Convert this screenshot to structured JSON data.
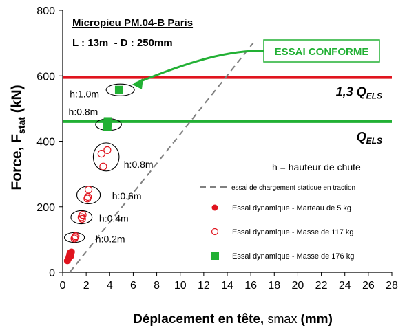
{
  "chart_data": {
    "type": "scatter",
    "title": "Micropieu PM.04-B Paris",
    "subtitle": "L : 13m  - D : 250mm",
    "xlabel": {
      "text": "Déplacement en tête,",
      "symbol": "smax",
      "unit": "(mm)"
    },
    "ylabel": {
      "text": "Force, F",
      "sub": "stat",
      "unit": "(kN)"
    },
    "xlim": [
      0,
      28
    ],
    "ylim": [
      0,
      800
    ],
    "xticks": [
      0,
      2,
      4,
      6,
      8,
      10,
      12,
      14,
      16,
      18,
      20,
      22,
      24,
      26,
      28
    ],
    "yticks": [
      0,
      200,
      400,
      600,
      800
    ],
    "grid": false,
    "legend_position": "right",
    "legend_note": "h = hauteur  de chute",
    "reference_lines": [
      {
        "value": 595,
        "label_main": "1,3 Q",
        "label_sub": "ELS",
        "color": "#e0141e"
      },
      {
        "value": 460,
        "label_main": "Q",
        "label_sub": "ELS",
        "color": "#22b034"
      }
    ],
    "callout": {
      "text": "ESSAI CONFORME",
      "color": "#22b034",
      "points_to": {
        "x": 4.8,
        "y": 563
      }
    },
    "static_test_line": {
      "name": "essai de chargement statique en traction",
      "color": "#808080",
      "points": [
        {
          "x": 0.6,
          "y": 0
        },
        {
          "x": 16.2,
          "y": 700
        }
      ]
    },
    "series": [
      {
        "name": "Essai dynamique - Marteau de 5 kg",
        "marker": "filled-circle",
        "color": "#e0141e",
        "points": [
          {
            "x": 0.4,
            "y": 35
          },
          {
            "x": 0.5,
            "y": 42
          },
          {
            "x": 0.55,
            "y": 48
          },
          {
            "x": 0.6,
            "y": 55
          },
          {
            "x": 0.7,
            "y": 50
          },
          {
            "x": 0.65,
            "y": 60
          },
          {
            "x": 0.75,
            "y": 62
          }
        ]
      },
      {
        "name": "Essai dynamique - Masse de 117 kg",
        "marker": "open-circle",
        "color": "#e0141e",
        "points": [
          {
            "x": 1.0,
            "y": 103
          },
          {
            "x": 1.1,
            "y": 110
          },
          {
            "x": 1.05,
            "y": 107
          },
          {
            "x": 1.6,
            "y": 168
          },
          {
            "x": 1.7,
            "y": 175
          },
          {
            "x": 1.65,
            "y": 163
          },
          {
            "x": 2.1,
            "y": 225
          },
          {
            "x": 2.2,
            "y": 252
          },
          {
            "x": 2.15,
            "y": 230
          },
          {
            "x": 3.3,
            "y": 362
          },
          {
            "x": 3.8,
            "y": 373
          },
          {
            "x": 3.45,
            "y": 323
          }
        ]
      },
      {
        "name": "Essai dynamique - Masse de 176 kg",
        "marker": "filled-square",
        "color": "#22b034",
        "points": [
          {
            "x": 3.8,
            "y": 445
          },
          {
            "x": 3.8,
            "y": 455
          },
          {
            "x": 3.85,
            "y": 461
          },
          {
            "x": 4.8,
            "y": 557
          }
        ]
      }
    ],
    "group_ellipses": [
      {
        "label": "h:0.2m",
        "cx": 1.0,
        "cy": 106,
        "rx": 0.85,
        "ry": 15,
        "label_x": 2.8,
        "label_y": 102
      },
      {
        "label": "h:0.4m",
        "cx": 1.6,
        "cy": 168,
        "rx": 0.9,
        "ry": 20,
        "label_x": 3.1,
        "label_y": 165
      },
      {
        "label": "h:0.6m",
        "cx": 2.2,
        "cy": 236,
        "rx": 1.0,
        "ry": 27,
        "label_x": 4.2,
        "label_y": 233
      },
      {
        "label": "h:0.8m",
        "cx": 3.7,
        "cy": 352,
        "rx": 1.1,
        "ry": 43,
        "label_x": 5.2,
        "label_y": 330
      },
      {
        "label": "h:0.8m",
        "cx": 3.9,
        "cy": 451,
        "rx": 1.1,
        "ry": 18,
        "label_x": 0.5,
        "label_y": 490
      },
      {
        "label": "h:1.0m",
        "cx": 4.9,
        "cy": 557,
        "rx": 1.2,
        "ry": 18,
        "label_x": 0.6,
        "label_y": 545
      }
    ]
  }
}
